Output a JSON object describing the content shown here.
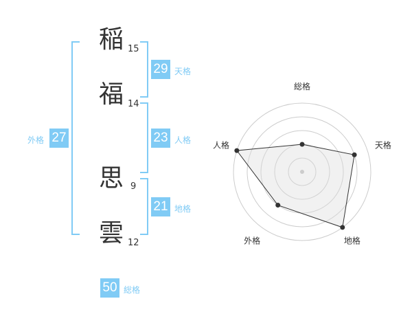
{
  "name": {
    "chars": [
      {
        "char": "稲",
        "strokes": "15"
      },
      {
        "char": "福",
        "strokes": "14"
      },
      {
        "char": "思",
        "strokes": "9"
      },
      {
        "char": "雲",
        "strokes": "12"
      }
    ]
  },
  "fortunes": {
    "tenkaku": {
      "label": "天格",
      "value": "29"
    },
    "jinkaku": {
      "label": "人格",
      "value": "23"
    },
    "chikaku": {
      "label": "地格",
      "value": "21"
    },
    "gaikaku": {
      "label": "外格",
      "value": "27"
    },
    "soukaku": {
      "label": "総格",
      "value": "50"
    }
  },
  "colors": {
    "accent": "#80cbf5",
    "text": "#333333",
    "fill": "#f2f2f2",
    "ring": "#cccccc"
  },
  "chart_data": {
    "type": "radar",
    "axes": [
      "総格",
      "天格",
      "地格",
      "外格",
      "人格"
    ],
    "values": [
      2,
      4,
      5,
      3,
      5
    ],
    "range": [
      0,
      5
    ],
    "rings": 5
  }
}
